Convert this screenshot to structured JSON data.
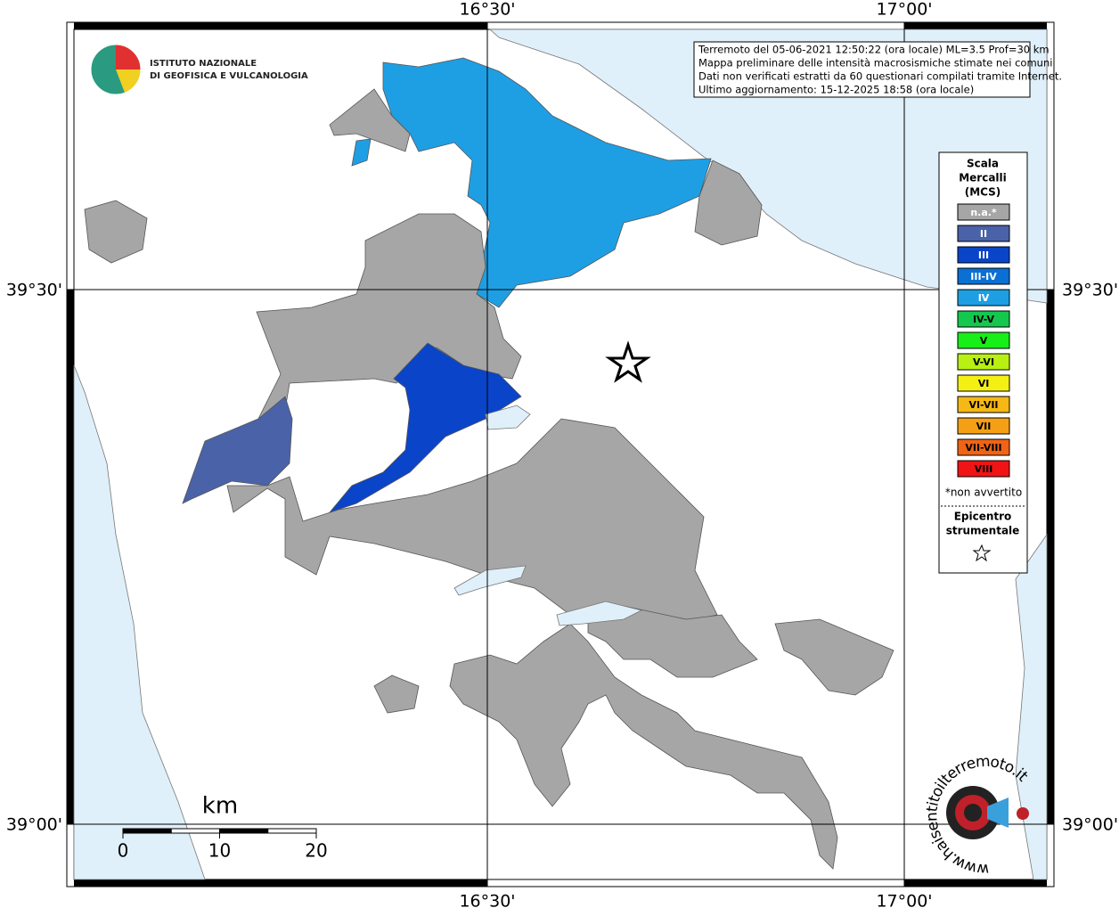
{
  "map": {
    "lon_labels": [
      "16°30'",
      "17°00'"
    ],
    "lat_labels": [
      "39°30'",
      "39°00'"
    ],
    "institute": [
      "ISTITUTO NAZIONALE",
      "DI GEOFISICA E VULCANOLOGIA"
    ],
    "info_lines": [
      "Terremoto del 05-06-2021 12:50:22 (ora locale) ML=3.5 Prof=30 km",
      "Mappa preliminare delle intensità macrosismiche stimate nei comuni",
      "Dati non verificati estratti da 60 questionari compilati tramite Internet.",
      "Ultimo aggiornamento: 15-12-2025 18:58 (ora locale)"
    ],
    "legend": {
      "title": [
        "Scala",
        "Mercalli",
        "(MCS)"
      ],
      "items": [
        {
          "label": "n.a.*",
          "color": "#a6a6a6"
        },
        {
          "label": "II",
          "color": "#4a62a8"
        },
        {
          "label": "III",
          "color": "#0a44c8"
        },
        {
          "label": "III-IV",
          "color": "#0a70d4"
        },
        {
          "label": "IV",
          "color": "#1e9fe4"
        },
        {
          "label": "IV-V",
          "color": "#14c84e"
        },
        {
          "label": "V",
          "color": "#18ee18"
        },
        {
          "label": "V-VI",
          "color": "#b8f014"
        },
        {
          "label": "VI",
          "color": "#f5f014"
        },
        {
          "label": "VI-VII",
          "color": "#f5b814"
        },
        {
          "label": "VII",
          "color": "#f5a014"
        },
        {
          "label": "VII-VIII",
          "color": "#f06414"
        },
        {
          "label": "VIII",
          "color": "#f01414"
        }
      ],
      "note": "*non avvertito",
      "epicenter": [
        "Epicentro",
        "strumentale"
      ]
    },
    "scale_bar": {
      "unit": "km",
      "ticks": [
        0,
        10,
        20
      ]
    },
    "watermark": "www.haisentitoilterremoto.it"
  }
}
